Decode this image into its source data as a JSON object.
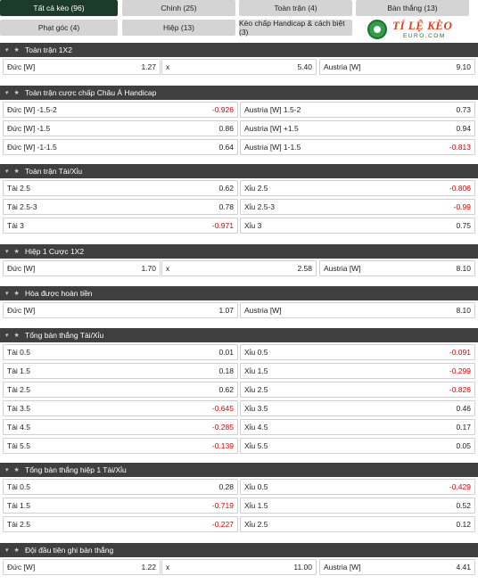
{
  "tabs": [
    {
      "label": "Tất cả kèo (96)",
      "active": true
    },
    {
      "label": "Chính (25)",
      "active": false
    },
    {
      "label": "Toàn trận (4)",
      "active": false
    },
    {
      "label": "Bàn thắng (13)",
      "active": false
    },
    {
      "label": "Phạt góc (4)",
      "active": false
    },
    {
      "label": "Hiệp (13)",
      "active": false
    },
    {
      "label": "Kèo chấp Handicap & cách biệt (3)",
      "active": false
    }
  ],
  "logo": {
    "main": "TỈ LỆ KÈO",
    "sub": "EURO.COM"
  },
  "sections": [
    {
      "title": "Toàn trận 1X2",
      "cols": 3,
      "rows": [
        [
          {
            "label": "Đức [W]",
            "odd": "1.27"
          },
          {
            "label": "x",
            "odd": "5.40"
          },
          {
            "label": "Austria [W]",
            "odd": "9.10"
          }
        ]
      ]
    },
    {
      "title": "Toàn trận cược chấp Châu Á Handicap",
      "cols": 2,
      "rows": [
        [
          {
            "label": "Đức [W] -1.5-2",
            "odd": "-0.926"
          },
          {
            "label": "Austria [W] 1.5-2",
            "odd": "0.73"
          }
        ],
        [
          {
            "label": "Đức [W] -1.5",
            "odd": "0.86"
          },
          {
            "label": "Austria [W] +1.5",
            "odd": "0.94"
          }
        ],
        [
          {
            "label": "Đức [W] -1-1.5",
            "odd": "0.64"
          },
          {
            "label": "Austria [W] 1-1.5",
            "odd": "-0.813"
          }
        ]
      ]
    },
    {
      "title": "Toàn trận Tài/Xỉu",
      "cols": 2,
      "rows": [
        [
          {
            "label": "Tài 2.5",
            "odd": "0.62"
          },
          {
            "label": "Xỉu 2.5",
            "odd": "-0.806"
          }
        ],
        [
          {
            "label": "Tài 2.5-3",
            "odd": "0.78"
          },
          {
            "label": "Xỉu 2.5-3",
            "odd": "-0.99"
          }
        ],
        [
          {
            "label": "Tài 3",
            "odd": "-0.971"
          },
          {
            "label": "Xỉu 3",
            "odd": "0.75"
          }
        ]
      ]
    },
    {
      "title": "Hiệp 1 Cược 1X2",
      "cols": 3,
      "rows": [
        [
          {
            "label": "Đức [W]",
            "odd": "1.70"
          },
          {
            "label": "x",
            "odd": "2.58"
          },
          {
            "label": "Austria [W]",
            "odd": "8.10"
          }
        ]
      ]
    },
    {
      "title": "Hòa được hoàn tiền",
      "cols": 2,
      "rows": [
        [
          {
            "label": "Đức [W]",
            "odd": "1.07"
          },
          {
            "label": "Austria [W]",
            "odd": "8.10"
          }
        ]
      ]
    },
    {
      "title": "Tổng bàn thắng Tài/Xỉu",
      "cols": 2,
      "rows": [
        [
          {
            "label": "Tài 0.5",
            "odd": "0.01"
          },
          {
            "label": "Xỉu 0.5",
            "odd": "-0.091"
          }
        ],
        [
          {
            "label": "Tài 1.5",
            "odd": "0.18"
          },
          {
            "label": "Xỉu 1.5",
            "odd": "-0.299"
          }
        ],
        [
          {
            "label": "Tài 2.5",
            "odd": "0.62"
          },
          {
            "label": "Xỉu 2.5",
            "odd": "-0.826"
          }
        ],
        [
          {
            "label": "Tài 3.5",
            "odd": "-0.645"
          },
          {
            "label": "Xỉu 3.5",
            "odd": "0.46"
          }
        ],
        [
          {
            "label": "Tài 4.5",
            "odd": "-0.285"
          },
          {
            "label": "Xỉu 4.5",
            "odd": "0.17"
          }
        ],
        [
          {
            "label": "Tài 5.5",
            "odd": "-0.139"
          },
          {
            "label": "Xỉu 5.5",
            "odd": "0.05"
          }
        ]
      ]
    },
    {
      "title": "Tổng bàn thắng hiệp 1 Tài/Xỉu",
      "cols": 2,
      "rows": [
        [
          {
            "label": "Tài 0.5",
            "odd": "0.28"
          },
          {
            "label": "Xỉu 0.5",
            "odd": "-0.429"
          }
        ],
        [
          {
            "label": "Tài 1.5",
            "odd": "-0.719"
          },
          {
            "label": "Xỉu 1.5",
            "odd": "0.52"
          }
        ],
        [
          {
            "label": "Tài 2.5",
            "odd": "-0.227"
          },
          {
            "label": "Xỉu 2.5",
            "odd": "0.12"
          }
        ]
      ]
    },
    {
      "title": "Đội đầu tiên ghi bàn thắng",
      "cols": 3,
      "rows": [
        [
          {
            "label": "Đức [W]",
            "odd": "1.22"
          },
          {
            "label": "x",
            "odd": "11.00"
          },
          {
            "label": "Austria [W]",
            "odd": "4.41"
          }
        ]
      ]
    }
  ]
}
